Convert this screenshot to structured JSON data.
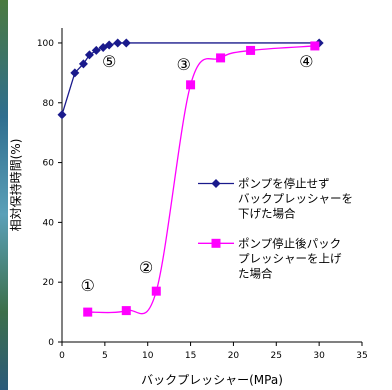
{
  "chart_data": {
    "type": "line",
    "xlabel": "バックプレッシャー(MPa)",
    "ylabel": "相対保持時間(%)",
    "xlim": [
      0,
      35
    ],
    "ylim": [
      0,
      105
    ],
    "x_ticks": [
      "0",
      "5",
      "10",
      "15",
      "20",
      "25",
      "30",
      "35"
    ],
    "y_ticks": [
      "0",
      "20",
      "40",
      "60",
      "80",
      "100"
    ],
    "grid": false,
    "legend_position": "right",
    "series": [
      {
        "name": "ポンプを停止せずバックプレッシャーを下げた場合",
        "legend_lines": [
          "ポンプを停止せず",
          "バックプレッシャーを",
          "下げた場合"
        ],
        "color": "#1a1a8c",
        "marker": "diamond",
        "x": [
          0,
          1.5,
          2.5,
          3.2,
          4.0,
          4.8,
          5.5,
          6.5,
          7.5,
          30
        ],
        "y": [
          76,
          90,
          93,
          96,
          97.5,
          98.5,
          99.3,
          100,
          100,
          100
        ]
      },
      {
        "name": "ポンプ停止後パックプレッシャーを上げた場合",
        "legend_lines": [
          "ポンプ停止後パック",
          "プレッシャーを上げ",
          "た場合"
        ],
        "color": "#ff00ff",
        "marker": "square",
        "x": [
          3,
          7.5,
          11,
          15,
          18.5,
          22,
          29.5
        ],
        "y": [
          10,
          10.5,
          17,
          86,
          95,
          97.5,
          99
        ]
      }
    ],
    "annotations": [
      {
        "text": "①",
        "x": 3,
        "y": 17
      },
      {
        "text": "②",
        "x": 9.8,
        "y": 23
      },
      {
        "text": "③",
        "x": 14.2,
        "y": 91
      },
      {
        "text": "④",
        "x": 28.5,
        "y": 92
      },
      {
        "text": "⑤",
        "x": 5.5,
        "y": 92
      }
    ]
  },
  "colors": {
    "axis": "#000000",
    "background": "#ffffff",
    "left_strip": "#3b7a6a"
  }
}
